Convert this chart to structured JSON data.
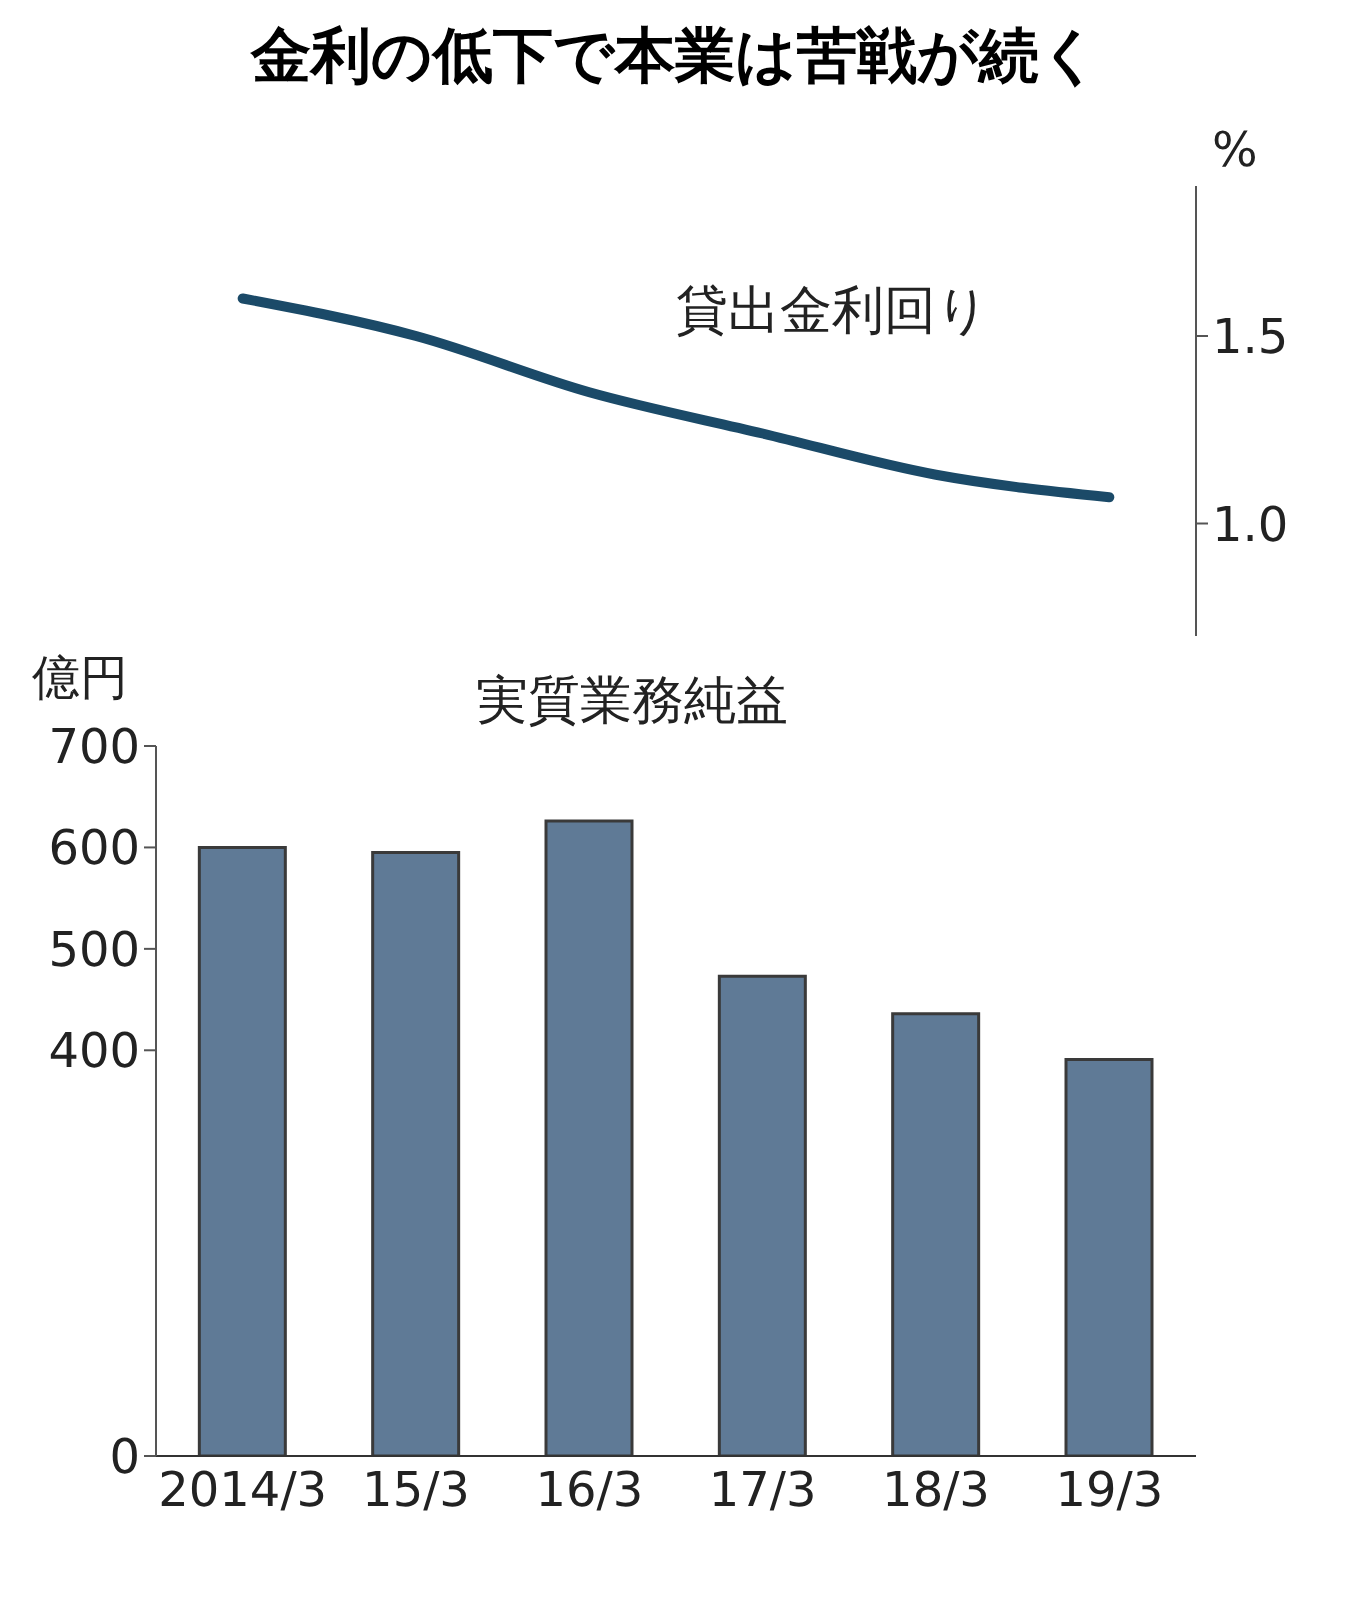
{
  "chart_data": [
    {
      "type": "line",
      "title": "金利の低下で本業は苦戦が続く",
      "categories": [
        null,
        null,
        null,
        null,
        null,
        null
      ],
      "series": [
        {
          "name": "貸出金利回り",
          "color": "#1b4a68",
          "values": [
            1.6,
            1.5,
            1.35,
            1.24,
            1.13,
            1.07
          ]
        }
      ],
      "ylabel": "%",
      "ylim": [
        0.7,
        1.9
      ],
      "yticks": [
        {
          "value": 1.0,
          "label": "1.0"
        },
        {
          "value": 1.5,
          "label": "1.5"
        }
      ],
      "tick_labels": "y",
      "grid": false,
      "legend": false,
      "marker": "none"
    },
    {
      "type": "bar",
      "categories": [
        "2014/3",
        "15/3",
        "16/3",
        "17/3",
        "18/3",
        "19/3"
      ],
      "series": [
        {
          "name": "実質業務純益",
          "color": "#5f7a96",
          "values": [
            600,
            595,
            626,
            473,
            436,
            391
          ]
        }
      ],
      "ylabel": "億円",
      "ylim": [
        0,
        700
      ],
      "yticks": [
        0,
        400,
        500,
        600,
        700
      ],
      "grid": false,
      "legend": false
    }
  ]
}
